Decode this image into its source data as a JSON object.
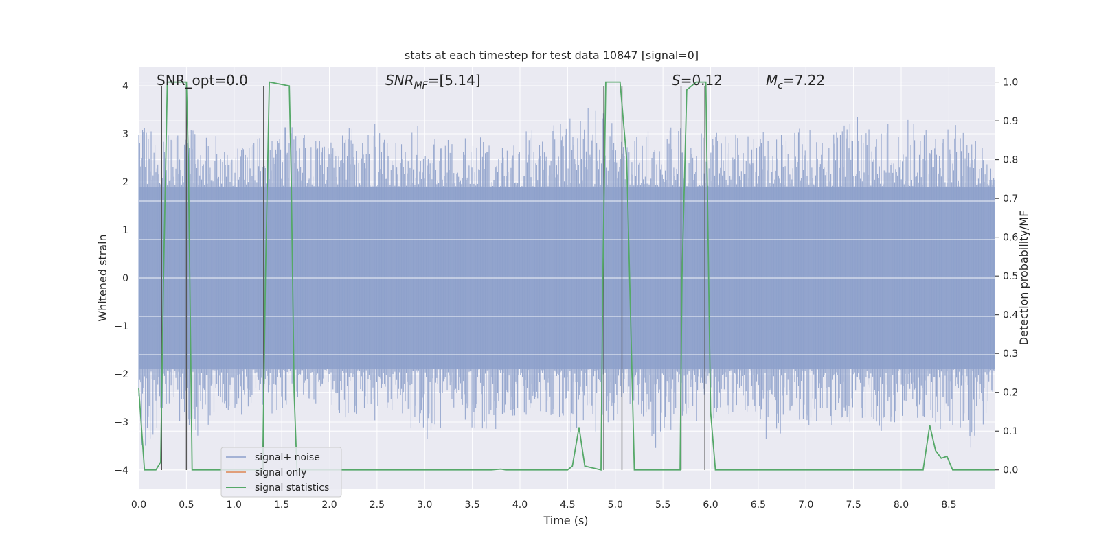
{
  "chart_data": {
    "type": "line",
    "title": "stats at each timestep for test data 10847 [signal=0]",
    "xlabel": "Time (s)",
    "ylabel_left": "Whitened strain",
    "ylabel_right": "Detection probability/MF",
    "xlim": [
      0.0,
      8.98
    ],
    "ylim_left": [
      -4.4,
      4.4
    ],
    "ylim_right": [
      -0.05,
      1.04
    ],
    "xticks": [
      0.0,
      0.5,
      1.0,
      1.5,
      2.0,
      2.5,
      3.0,
      3.5,
      4.0,
      4.5,
      5.0,
      5.5,
      6.0,
      6.5,
      7.0,
      7.5,
      8.0,
      8.5
    ],
    "xtick_labels": [
      "0.0",
      "0.5",
      "1.0",
      "1.5",
      "2.0",
      "2.5",
      "3.0",
      "3.5",
      "4.0",
      "4.5",
      "5.0",
      "5.5",
      "6.0",
      "6.5",
      "7.0",
      "7.5",
      "8.0",
      "8.5"
    ],
    "yticks_left": [
      -4,
      -3,
      -2,
      -1,
      0,
      1,
      2,
      3,
      4
    ],
    "ytick_labels_left": [
      "−4",
      "−3",
      "−2",
      "−1",
      "0",
      "1",
      "2",
      "3",
      "4"
    ],
    "yticks_right": [
      0.0,
      0.1,
      0.2,
      0.3,
      0.4,
      0.5,
      0.6,
      0.7,
      0.8,
      0.9,
      1.0
    ],
    "ytick_labels_right": [
      "0.0",
      "0.1",
      "0.2",
      "0.3",
      "0.4",
      "0.5",
      "0.6",
      "0.7",
      "0.8",
      "0.9",
      "1.0"
    ],
    "grid": true,
    "annotations": {
      "snr_opt": "SNR_opt=0.0",
      "snr_mf_sym": "SNR",
      "snr_mf_sub": "MF",
      "snr_mf_val": "=[5.14]",
      "s_sym": "S",
      "s_val": "=0.12",
      "mc_sym": "M",
      "mc_sub": "c",
      "mc_val": "=7.22"
    },
    "noise_envelope": {
      "x": [
        0.0,
        0.3,
        0.6,
        0.9,
        1.2,
        1.5,
        1.8,
        2.1,
        2.4,
        2.7,
        3.0,
        3.3,
        3.6,
        3.9,
        4.2,
        4.5,
        4.8,
        5.1,
        5.4,
        5.7,
        6.0,
        6.3,
        6.6,
        6.9,
        7.2,
        7.5,
        7.8,
        8.1,
        8.4,
        8.7,
        8.98
      ],
      "upper": [
        3.2,
        3.0,
        3.1,
        2.9,
        2.8,
        3.5,
        2.9,
        3.0,
        3.4,
        2.9,
        3.3,
        2.8,
        3.1,
        3.0,
        3.2,
        3.3,
        3.7,
        2.9,
        3.1,
        3.2,
        3.1,
        3.0,
        3.3,
        3.2,
        3.0,
        3.4,
        3.2,
        3.3,
        3.5,
        3.0,
        2.5
      ],
      "lower": [
        -3.8,
        -2.8,
        -3.3,
        -3.1,
        -2.7,
        -3.0,
        -2.6,
        -2.9,
        -3.1,
        -2.7,
        -3.6,
        -2.8,
        -3.4,
        -2.9,
        -3.0,
        -3.2,
        -3.3,
        -2.8,
        -3.6,
        -2.9,
        -3.3,
        -2.8,
        -3.5,
        -3.0,
        -3.2,
        -3.0,
        -3.3,
        -2.9,
        -3.2,
        -3.8,
        -2.5
      ],
      "dense_band": [
        -1.9,
        1.9
      ]
    },
    "series": [
      {
        "name": "signal+ noise",
        "color": "#8da0cb",
        "kind": "strain"
      },
      {
        "name": "signal only",
        "color": "#dd8452",
        "kind": "none"
      },
      {
        "name": "signal statistics",
        "color": "#55a868",
        "kind": "probability",
        "x": [
          0.0,
          0.06,
          0.18,
          0.23,
          0.26,
          0.3,
          0.5,
          0.52,
          0.56,
          1.3,
          1.33,
          1.37,
          1.58,
          1.6,
          1.63,
          1.66,
          3.7,
          3.8,
          3.85,
          4.5,
          4.55,
          4.62,
          4.68,
          4.85,
          4.87,
          4.9,
          5.05,
          5.12,
          5.2,
          5.68,
          5.7,
          5.75,
          5.85,
          5.95,
          6.0,
          6.05,
          6.5,
          8.23,
          8.3,
          8.36,
          8.42,
          8.48,
          8.54,
          8.98
        ],
        "y": [
          0.21,
          0.0,
          0.0,
          0.02,
          0.5,
          1.0,
          1.0,
          0.8,
          0.0,
          0.0,
          0.5,
          1.0,
          0.99,
          0.75,
          0.2,
          0.0,
          0.0,
          0.002,
          0.0,
          0.0,
          0.01,
          0.11,
          0.01,
          0.0,
          0.5,
          1.0,
          1.0,
          0.8,
          0.0,
          0.0,
          0.5,
          0.98,
          1.0,
          1.0,
          0.15,
          0.0,
          0.0,
          0.0,
          0.115,
          0.05,
          0.03,
          0.035,
          0.0,
          0.0
        ]
      }
    ],
    "vertical_markers": [
      0.24,
      0.5,
      1.31,
      4.88,
      5.07,
      5.69,
      5.94
    ],
    "legend": {
      "position": "lower-left"
    }
  }
}
